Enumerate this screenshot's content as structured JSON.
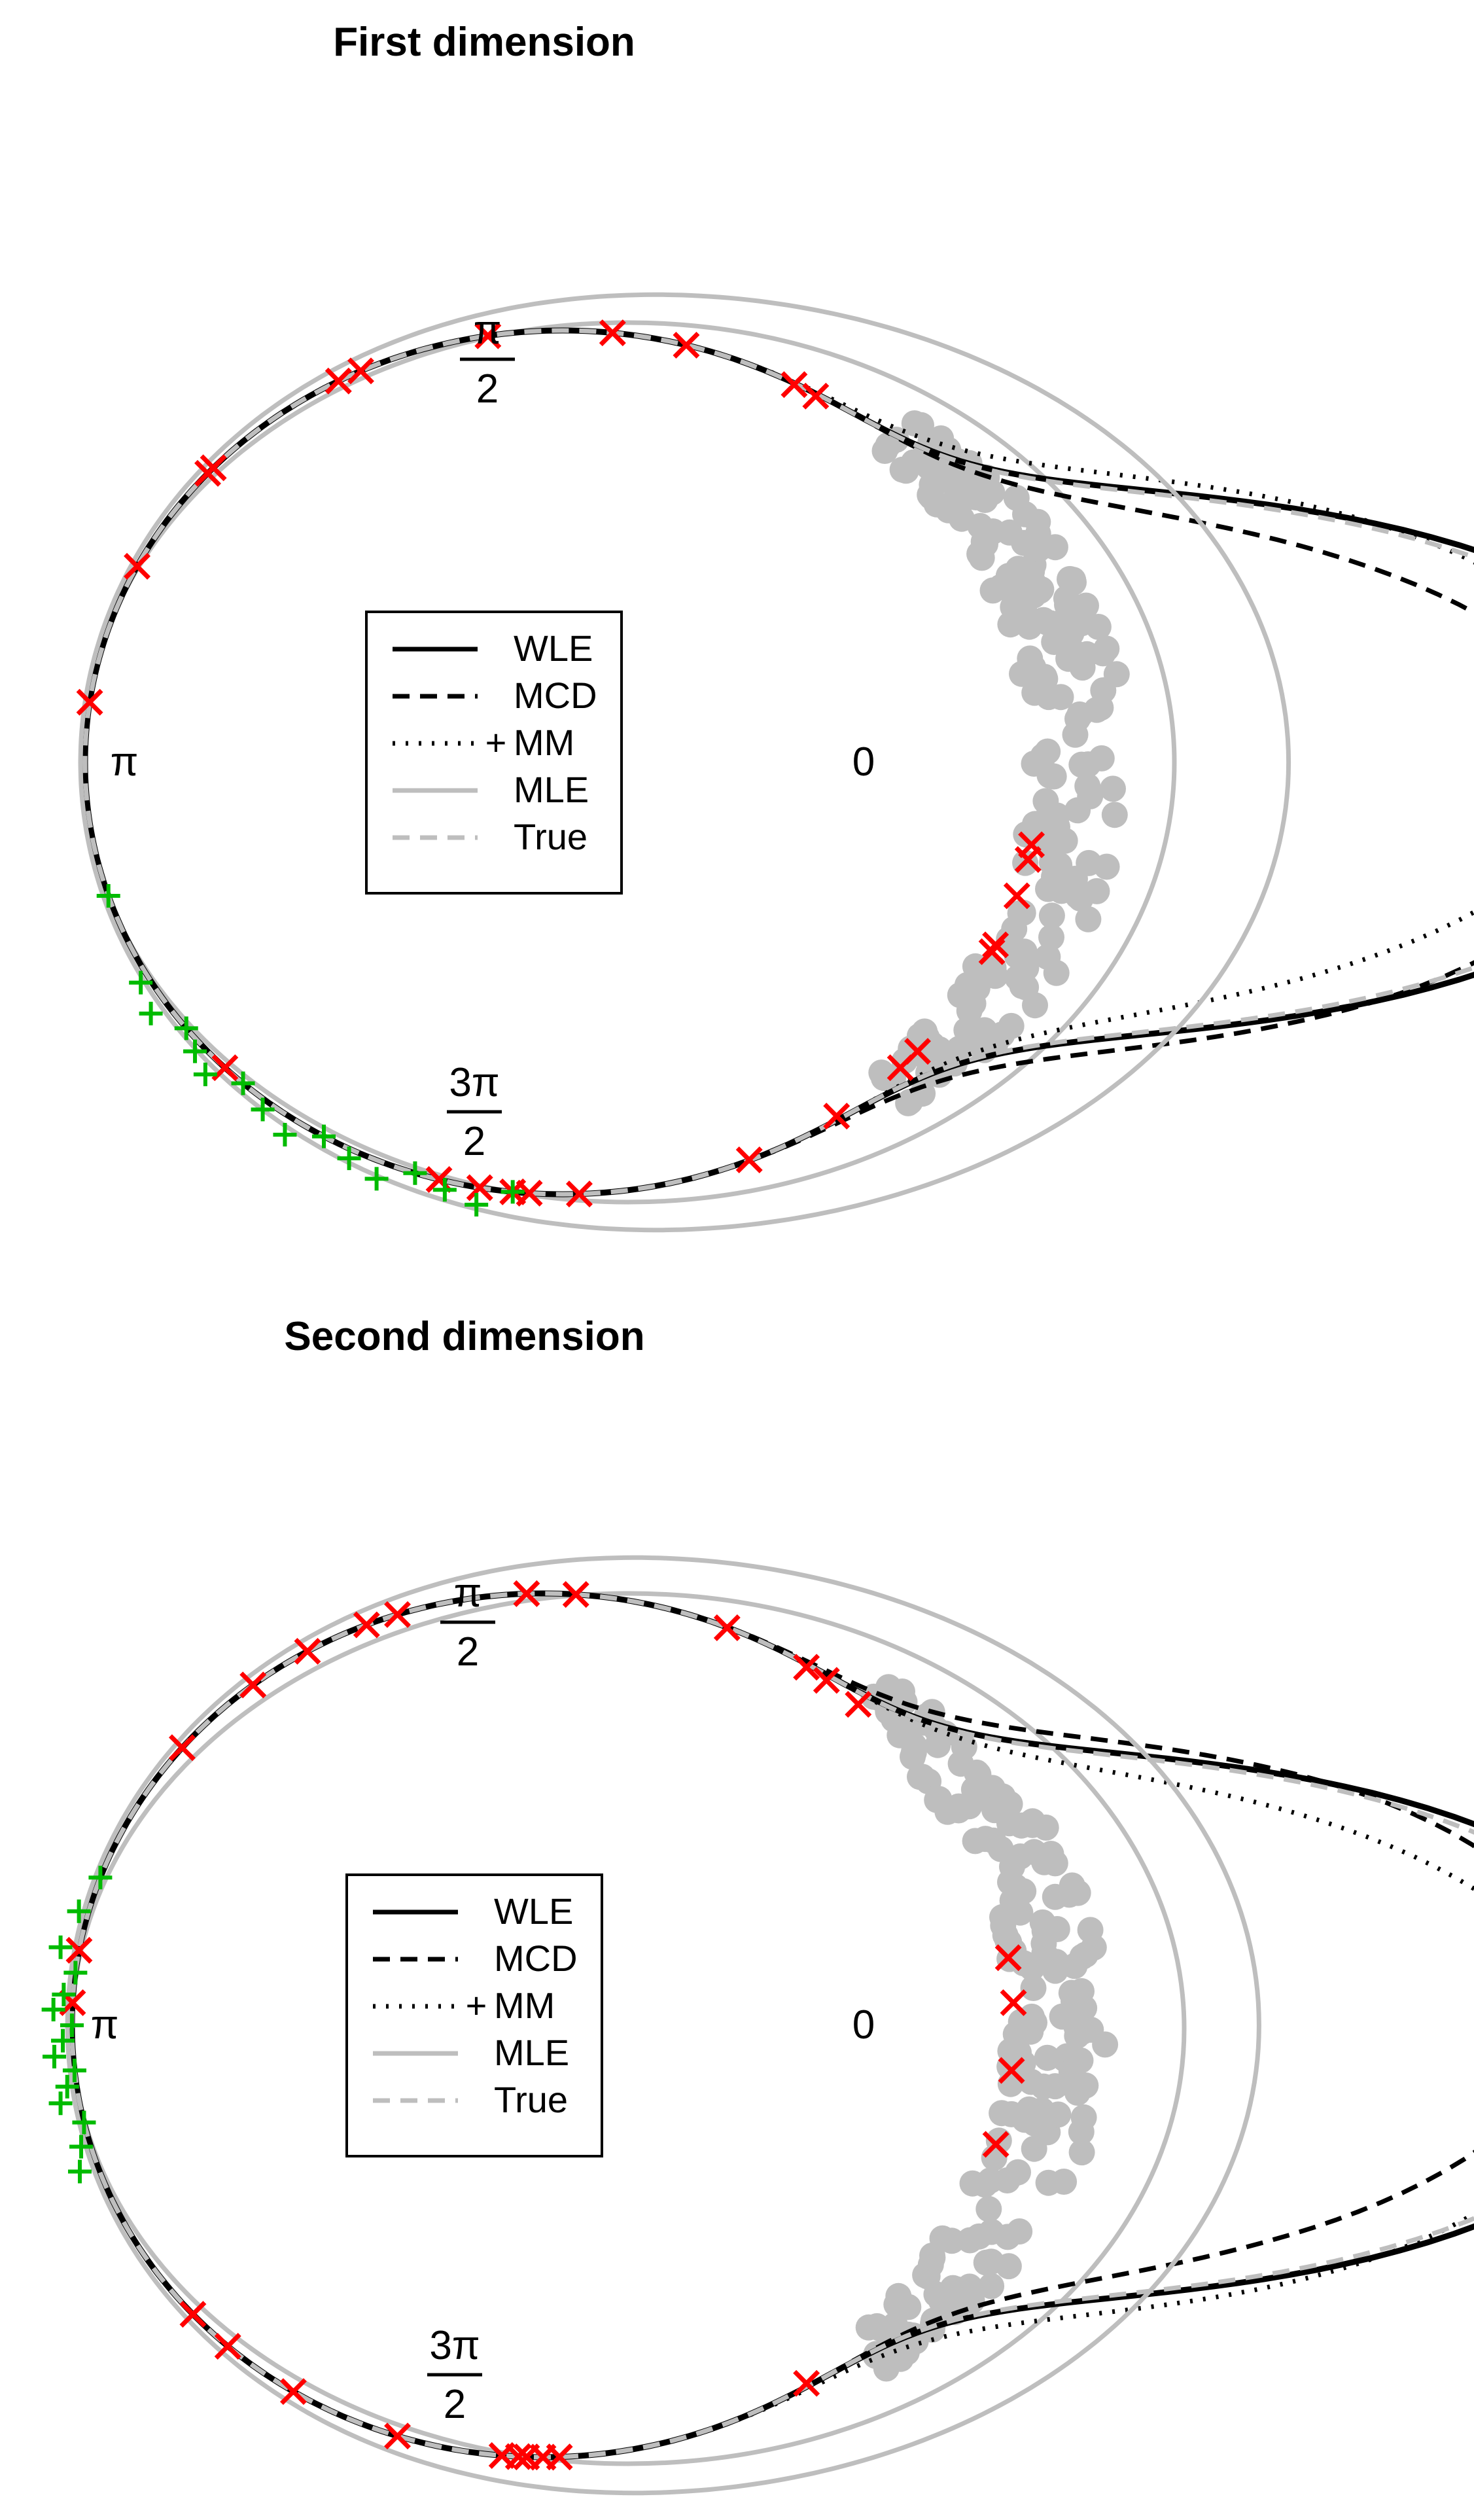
{
  "chart_data": [
    {
      "type": "line",
      "subtype": "circular density (polar)",
      "title": "First dimension",
      "angle_labels": [
        {
          "angle": "0",
          "text": "0"
        },
        {
          "angle": "pi/2",
          "num": "π",
          "den": "2"
        },
        {
          "angle": "pi",
          "text": "π"
        },
        {
          "angle": "3pi/2",
          "num": "3π",
          "den": "2"
        }
      ],
      "legend": {
        "position": "center",
        "entries": [
          {
            "label": "WLE",
            "color": "#000000",
            "style": "solid"
          },
          {
            "label": "MCD",
            "color": "#000000",
            "style": "dashed"
          },
          {
            "label": "MM",
            "color": "#000000",
            "style": "dotted",
            "marker": "+"
          },
          {
            "label": "MLE",
            "color": "#bebebe",
            "style": "solid"
          },
          {
            "label": "True",
            "color": "#bebebe",
            "style": "dashed"
          }
        ]
      },
      "series": [
        {
          "name": "WLE",
          "peak_angle_deg": 0,
          "peak_radius": 2.42,
          "concentration": 12
        },
        {
          "name": "MCD",
          "peak_angle_deg": -2,
          "peak_radius": 2.21,
          "concentration": 11
        },
        {
          "name": "MM",
          "peak_angle_deg": 2,
          "peak_radius": 2.21,
          "concentration": 11
        },
        {
          "name": "MLE",
          "peak_angle_deg": 0,
          "peak_radius": 1.52,
          "concentration": 2
        },
        {
          "name": "True",
          "peak_angle_deg": 0,
          "peak_radius": 2.38,
          "concentration": 12
        }
      ],
      "data_points": {
        "color": "#bebebe",
        "center_angle_deg": 0,
        "count": 200
      },
      "outliers_x": {
        "color": "#ff0000",
        "angles_deg": [
          58,
          61,
          75,
          84,
          99,
          115,
          118,
          137,
          138,
          153,
          172,
          225,
          255,
          260,
          264,
          266,
          272,
          293,
          305,
          315,
          318,
          334,
          335,
          342,
          347,
          349
        ]
      },
      "outliers_plus": {
        "color": "#00bb00",
        "angles_deg": [
          198,
          210,
          214,
          218,
          221,
          224,
          228,
          232,
          236,
          240,
          244,
          248,
          252,
          256,
          260,
          264
        ]
      }
    },
    {
      "type": "line",
      "subtype": "circular density (polar)",
      "title": "Second dimension",
      "angle_labels": [
        {
          "angle": "0",
          "text": "0"
        },
        {
          "angle": "pi/2",
          "num": "π",
          "den": "2"
        },
        {
          "angle": "pi",
          "text": "π"
        },
        {
          "angle": "3pi/2",
          "num": "3π",
          "den": "2"
        }
      ],
      "legend": {
        "position": "center",
        "entries": [
          {
            "label": "WLE",
            "color": "#000000",
            "style": "solid"
          },
          {
            "label": "MCD",
            "color": "#000000",
            "style": "dashed"
          },
          {
            "label": "MM",
            "color": "#000000",
            "style": "dotted",
            "marker": "+"
          },
          {
            "label": "MLE",
            "color": "#bebebe",
            "style": "solid"
          },
          {
            "label": "True",
            "color": "#bebebe",
            "style": "dashed"
          }
        ]
      },
      "series": [
        {
          "name": "WLE",
          "peak_angle_deg": 0,
          "peak_radius": 2.42,
          "concentration": 12
        },
        {
          "name": "MCD",
          "peak_angle_deg": 2,
          "peak_radius": 2.2,
          "concentration": 11
        },
        {
          "name": "MM",
          "peak_angle_deg": -2,
          "peak_radius": 2.23,
          "concentration": 11
        },
        {
          "name": "MLE",
          "peak_angle_deg": 0,
          "peak_radius": 1.52,
          "concentration": 2
        },
        {
          "name": "True",
          "peak_angle_deg": 0,
          "peak_radius": 2.38,
          "concentration": 12
        }
      ],
      "data_points": {
        "color": "#bebebe",
        "center_angle_deg": 0,
        "count": 200
      },
      "outliers_x": {
        "color": "#ff0000",
        "angles_deg": [
          9,
          3,
          -6,
          -16,
          48,
          53,
          56,
          67,
          86,
          92,
          108,
          112,
          120,
          128,
          140,
          170,
          177,
          222,
          228,
          238,
          252,
          265,
          267,
          268,
          270,
          272,
          304
        ]
      },
      "outliers_plus": {
        "color": "#00bb00",
        "angles_deg": [
          160,
          165,
          170,
          173,
          176,
          178,
          180,
          182,
          184,
          186,
          188,
          190,
          193,
          196,
          199
        ]
      }
    }
  ]
}
